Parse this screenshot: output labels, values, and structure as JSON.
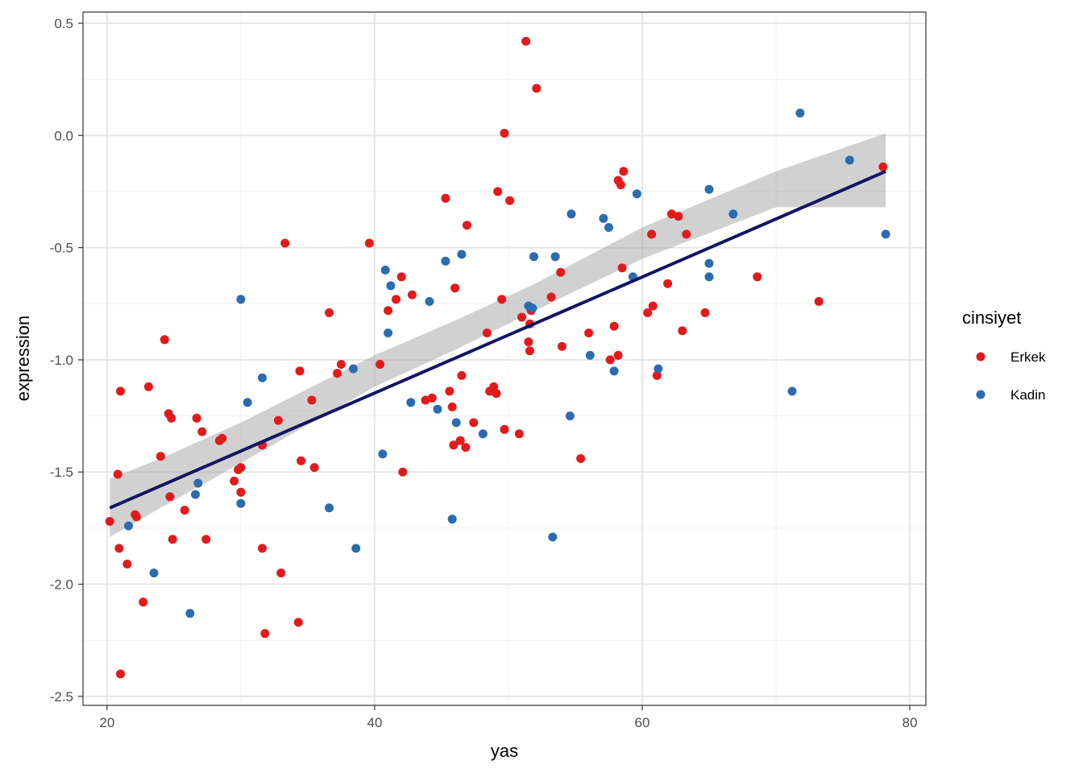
{
  "chart_data": {
    "type": "scatter",
    "xlabel": "yas",
    "ylabel": "expression",
    "xlim": [
      18.2,
      81.2
    ],
    "ylim": [
      -2.54,
      0.55
    ],
    "x_ticks": [
      20,
      40,
      60,
      80
    ],
    "x_tick_labels": [
      "20",
      "40",
      "60",
      "80"
    ],
    "y_ticks": [
      0.5,
      0.0,
      -0.5,
      -1.0,
      -1.5,
      -2.0,
      -2.5
    ],
    "y_tick_labels": [
      "0.5",
      "0.0",
      "-0.5",
      "-1.0",
      "-1.5",
      "-2.0",
      "-2.5"
    ],
    "grid": true,
    "legend": {
      "title": "cinsiyet",
      "position": "right"
    },
    "series": [
      {
        "name": "Erkek",
        "color": "#e31a1c",
        "points": [
          [
            20.2,
            -1.72
          ],
          [
            20.8,
            -1.51
          ],
          [
            20.9,
            -1.84
          ],
          [
            21.0,
            -2.4
          ],
          [
            21.0,
            -1.14
          ],
          [
            21.5,
            -1.91
          ],
          [
            22.1,
            -1.69
          ],
          [
            22.2,
            -1.7
          ],
          [
            22.7,
            -2.08
          ],
          [
            23.1,
            -1.12
          ],
          [
            24.0,
            -1.43
          ],
          [
            24.3,
            -0.91
          ],
          [
            24.7,
            -1.61
          ],
          [
            24.6,
            -1.24
          ],
          [
            24.8,
            -1.26
          ],
          [
            24.9,
            -1.8
          ],
          [
            25.8,
            -1.67
          ],
          [
            26.7,
            -1.26
          ],
          [
            27.1,
            -1.32
          ],
          [
            27.4,
            -1.8
          ],
          [
            28.4,
            -1.36
          ],
          [
            28.6,
            -1.35
          ],
          [
            29.5,
            -1.54
          ],
          [
            29.8,
            -1.49
          ],
          [
            30.0,
            -1.48
          ],
          [
            30.0,
            -1.59
          ],
          [
            31.6,
            -1.38
          ],
          [
            31.6,
            -1.84
          ],
          [
            31.8,
            -2.22
          ],
          [
            32.8,
            -1.27
          ],
          [
            33.0,
            -1.95
          ],
          [
            33.3,
            -0.48
          ],
          [
            34.3,
            -2.17
          ],
          [
            34.4,
            -1.05
          ],
          [
            34.5,
            -1.45
          ],
          [
            35.3,
            -1.18
          ],
          [
            35.5,
            -1.48
          ],
          [
            36.6,
            -0.79
          ],
          [
            37.2,
            -1.06
          ],
          [
            37.5,
            -1.02
          ],
          [
            39.6,
            -0.48
          ],
          [
            40.4,
            -1.02
          ],
          [
            41.0,
            -0.78
          ],
          [
            41.6,
            -0.73
          ],
          [
            42.0,
            -0.63
          ],
          [
            42.1,
            -1.5
          ],
          [
            42.8,
            -0.71
          ],
          [
            43.8,
            -1.18
          ],
          [
            44.3,
            -1.17
          ],
          [
            45.3,
            -0.28
          ],
          [
            45.6,
            -1.14
          ],
          [
            45.8,
            -1.21
          ],
          [
            45.9,
            -1.38
          ],
          [
            46.0,
            -0.68
          ],
          [
            46.4,
            -1.36
          ],
          [
            46.5,
            -1.07
          ],
          [
            46.8,
            -1.39
          ],
          [
            46.9,
            -0.4
          ],
          [
            47.4,
            -1.28
          ],
          [
            48.4,
            -0.88
          ],
          [
            48.6,
            -1.14
          ],
          [
            48.9,
            -1.12
          ],
          [
            49.1,
            -1.15
          ],
          [
            49.2,
            -0.25
          ],
          [
            49.5,
            -0.73
          ],
          [
            49.7,
            -1.31
          ],
          [
            49.7,
            0.01
          ],
          [
            50.1,
            -0.29
          ],
          [
            50.8,
            -1.33
          ],
          [
            51.0,
            -0.81
          ],
          [
            51.3,
            0.42
          ],
          [
            51.5,
            -0.92
          ],
          [
            51.6,
            -0.96
          ],
          [
            51.6,
            -0.84
          ],
          [
            51.7,
            -0.78
          ],
          [
            52.1,
            0.21
          ],
          [
            53.2,
            -0.72
          ],
          [
            53.9,
            -0.61
          ],
          [
            54.0,
            -0.94
          ],
          [
            55.4,
            -1.44
          ],
          [
            56.0,
            -0.88
          ],
          [
            57.6,
            -1.0
          ],
          [
            57.9,
            -0.85
          ],
          [
            58.2,
            -0.98
          ],
          [
            58.2,
            -0.2
          ],
          [
            58.4,
            -0.22
          ],
          [
            58.6,
            -0.16
          ],
          [
            58.5,
            -0.59
          ],
          [
            60.4,
            -0.79
          ],
          [
            60.7,
            -0.44
          ],
          [
            60.8,
            -0.76
          ],
          [
            61.1,
            -1.07
          ],
          [
            61.9,
            -0.66
          ],
          [
            62.2,
            -0.35
          ],
          [
            62.7,
            -0.36
          ],
          [
            63.0,
            -0.87
          ],
          [
            63.3,
            -0.44
          ],
          [
            64.7,
            -0.79
          ],
          [
            68.6,
            -0.63
          ],
          [
            73.2,
            -0.74
          ],
          [
            78.0,
            -0.14
          ]
        ]
      },
      {
        "name": "Kadin",
        "color": "#2b6cb0",
        "points": [
          [
            21.6,
            -1.74
          ],
          [
            23.5,
            -1.95
          ],
          [
            26.2,
            -2.13
          ],
          [
            26.6,
            -1.6
          ],
          [
            26.8,
            -1.55
          ],
          [
            30.0,
            -0.73
          ],
          [
            30.0,
            -1.64
          ],
          [
            30.5,
            -1.19
          ],
          [
            31.6,
            -1.08
          ],
          [
            36.6,
            -1.66
          ],
          [
            38.4,
            -1.04
          ],
          [
            38.6,
            -1.84
          ],
          [
            40.6,
            -1.42
          ],
          [
            40.8,
            -0.6
          ],
          [
            41.0,
            -0.88
          ],
          [
            41.2,
            -0.67
          ],
          [
            42.7,
            -1.19
          ],
          [
            44.1,
            -0.74
          ],
          [
            44.7,
            -1.22
          ],
          [
            45.3,
            -0.56
          ],
          [
            45.8,
            -1.71
          ],
          [
            46.1,
            -1.28
          ],
          [
            46.5,
            -0.53
          ],
          [
            48.1,
            -1.33
          ],
          [
            51.5,
            -0.76
          ],
          [
            51.8,
            -0.77
          ],
          [
            51.9,
            -0.54
          ],
          [
            53.3,
            -1.79
          ],
          [
            53.5,
            -0.54
          ],
          [
            54.6,
            -1.25
          ],
          [
            54.7,
            -0.35
          ],
          [
            56.1,
            -0.98
          ],
          [
            57.1,
            -0.37
          ],
          [
            57.5,
            -0.41
          ],
          [
            57.9,
            -1.05
          ],
          [
            59.3,
            -0.63
          ],
          [
            59.6,
            -0.26
          ],
          [
            61.2,
            -1.04
          ],
          [
            65.0,
            -0.24
          ],
          [
            65.0,
            -0.57
          ],
          [
            65.0,
            -0.63
          ],
          [
            66.8,
            -0.35
          ],
          [
            71.2,
            -1.14
          ],
          [
            71.8,
            0.1
          ],
          [
            75.5,
            -0.11
          ],
          [
            78.2,
            -0.44
          ]
        ]
      }
    ],
    "trend_line": {
      "method": "lm",
      "color": "#141464",
      "band_color": "#999999",
      "points": [
        [
          20.2,
          -1.66
        ],
        [
          78.2,
          -0.16
        ]
      ],
      "ci_lower": [
        [
          20.2,
          -1.79
        ],
        [
          24.0,
          -1.66
        ],
        [
          30.0,
          -1.46
        ],
        [
          40.0,
          -1.12
        ],
        [
          46.2,
          -0.95
        ],
        [
          52.0,
          -0.78
        ],
        [
          60.0,
          -0.55
        ],
        [
          70.0,
          -0.32
        ],
        [
          78.2,
          -0.32
        ]
      ],
      "ci_upper": [
        [
          78.2,
          0.01
        ],
        [
          70.0,
          -0.16
        ],
        [
          60.0,
          -0.41
        ],
        [
          52.0,
          -0.66
        ],
        [
          46.2,
          -0.82
        ],
        [
          40.0,
          -0.98
        ],
        [
          30.0,
          -1.28
        ],
        [
          24.0,
          -1.44
        ],
        [
          20.2,
          -1.53
        ]
      ]
    }
  }
}
